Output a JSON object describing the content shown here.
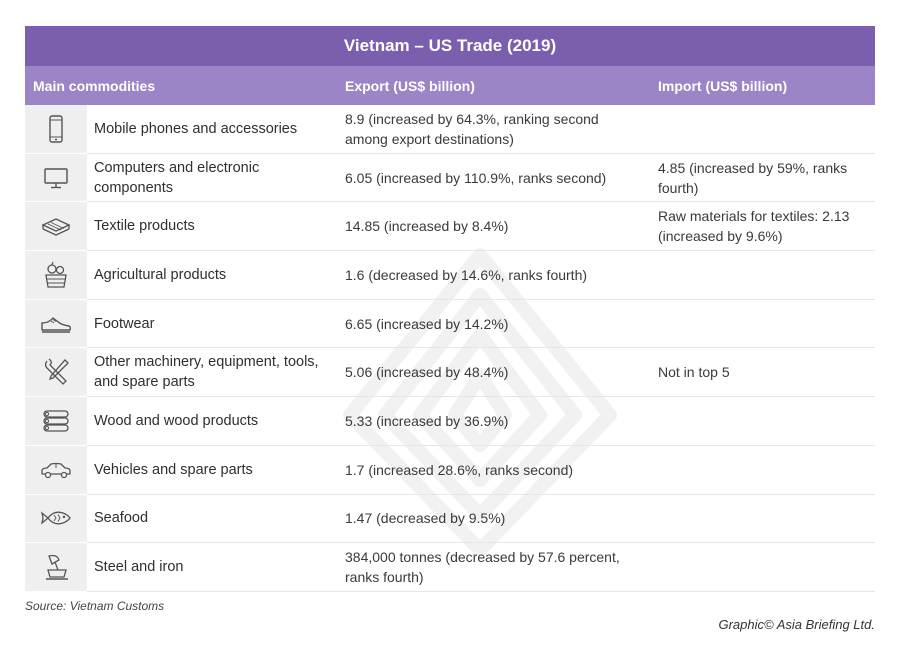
{
  "chart_data": {
    "type": "table",
    "title": "Vietnam – US Trade (2019)",
    "columns": [
      "Main commodities",
      "Export (US$ billion)",
      "Import (US$ billion)"
    ],
    "rows": [
      {
        "icon": "mobile-phone-icon",
        "commodity": "Mobile phones and accessories",
        "export": "8.9 (increased by 64.3%, ranking second among export destinations)",
        "import": ""
      },
      {
        "icon": "computer-monitor-icon",
        "commodity": "Computers and electronic components",
        "export": "6.05 (increased by 110.9%, ranks second)",
        "import": "4.85 (increased by 59%, ranks fourth)"
      },
      {
        "icon": "folded-textile-icon",
        "commodity": "Textile products",
        "export": "14.85 (increased by 8.4%)",
        "import": "Raw materials for textiles: 2.13 (increased by 9.6%)"
      },
      {
        "icon": "fruit-basket-icon",
        "commodity": "Agricultural products",
        "export": "1.6 (decreased by 14.6%, ranks fourth)",
        "import": ""
      },
      {
        "icon": "shoe-icon",
        "commodity": "Footwear",
        "export": "6.65 (increased by 14.2%)",
        "import": ""
      },
      {
        "icon": "wrench-screwdriver-icon",
        "commodity": "Other machinery, equipment, tools, and spare parts",
        "export": "5.06 (increased by 48.4%)",
        "import": "Not in top 5"
      },
      {
        "icon": "wood-logs-icon",
        "commodity": "Wood and wood products",
        "export": "5.33 (increased by 36.9%)",
        "import": ""
      },
      {
        "icon": "car-icon",
        "commodity": "Vehicles and spare parts",
        "export": "1.7 (increased 28.6%, ranks second)",
        "import": ""
      },
      {
        "icon": "fish-icon",
        "commodity": "Seafood",
        "export": "1.47 (decreased by 9.5%)",
        "import": ""
      },
      {
        "icon": "steel-ladle-icon",
        "commodity": "Steel and iron",
        "export": "384,000 tonnes (decreased by 57.6 percent, ranks fourth)",
        "import": ""
      }
    ]
  },
  "footer": {
    "source": "Source: Vietnam Customs",
    "credit": "Graphic© Asia Briefing Ltd."
  },
  "colors": {
    "title_bar": "#7b5fae",
    "header_row": "#9b85c6",
    "icon_column": "#efefef",
    "row_divider": "#e6e6e6"
  }
}
